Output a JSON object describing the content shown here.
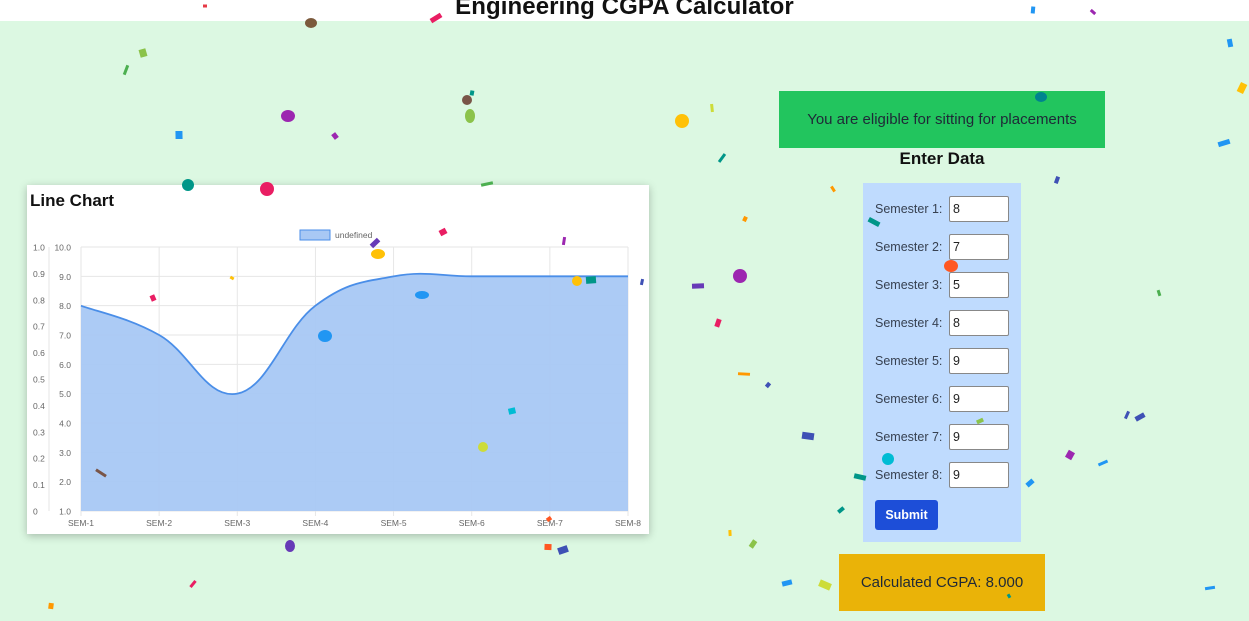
{
  "app": {
    "title": "Engineering CGPA Calculator"
  },
  "eligibility": {
    "message": "You are eligible for sitting for placements"
  },
  "form": {
    "heading": "Enter Data",
    "semesters": [
      {
        "label": "Semester 1:",
        "value": "8"
      },
      {
        "label": "Semester 2:",
        "value": "7"
      },
      {
        "label": "Semester 3:",
        "value": "5"
      },
      {
        "label": "Semester 4:",
        "value": "8"
      },
      {
        "label": "Semester 5:",
        "value": "9"
      },
      {
        "label": "Semester 6:",
        "value": "9"
      },
      {
        "label": "Semester 7:",
        "value": "9"
      },
      {
        "label": "Semester 8:",
        "value": "9"
      }
    ],
    "submit_label": "Submit"
  },
  "result": {
    "text": "Calculated CGPA: 8.000"
  },
  "colors": {
    "background": "#dcf8e2",
    "eligible": "#22c55e",
    "result": "#eab308",
    "panel": "#bfdbfe",
    "button": "#1d4ed8",
    "series_fill": "#a8c8f4",
    "series_line": "#4a8ee8"
  },
  "chart_data": {
    "type": "area",
    "title": "Line Chart",
    "categories": [
      "SEM-1",
      "SEM-2",
      "SEM-3",
      "SEM-4",
      "SEM-5",
      "SEM-6",
      "SEM-7",
      "SEM-8"
    ],
    "series": [
      {
        "name": "undefined",
        "values": [
          8,
          7,
          5,
          8,
          9,
          9,
          9,
          9
        ]
      }
    ],
    "legend": "top-center",
    "left_axis_ticks": [
      "1.0",
      "0.9",
      "0.8",
      "0.7",
      "0.6",
      "0.5",
      "0.4",
      "0.3",
      "0.2",
      "0.1",
      "0"
    ],
    "y_axis_ticks": [
      "10.0",
      "9.0",
      "8.0",
      "7.0",
      "6.0",
      "5.0",
      "4.0",
      "3.0",
      "2.0",
      "1.0"
    ],
    "ylim": [
      1,
      10
    ],
    "grid": true
  }
}
